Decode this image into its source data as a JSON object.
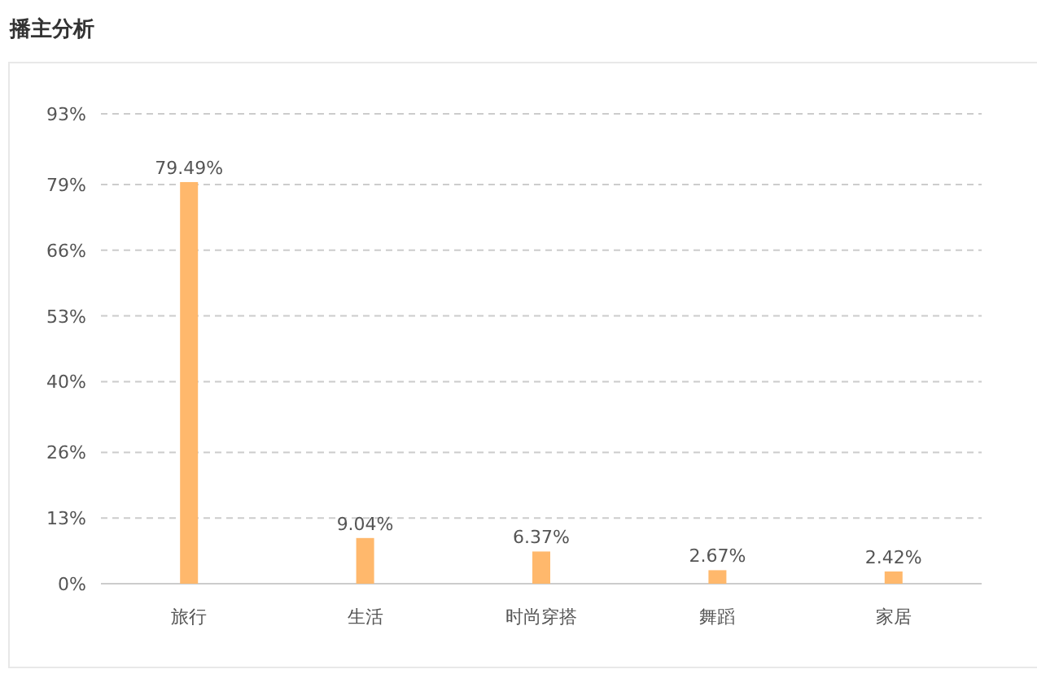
{
  "chart_data": {
    "type": "bar",
    "title": "播主分析",
    "categories": [
      "旅行",
      "生活",
      "时尚穿搭",
      "舞蹈",
      "家居"
    ],
    "values": [
      79.49,
      9.04,
      6.37,
      2.67,
      2.42
    ],
    "value_labels": [
      "79.49%",
      "9.04%",
      "6.37%",
      "2.67%",
      "2.42%"
    ],
    "color": "#ffb86c",
    "ylim": [
      0,
      93
    ],
    "yticks": [
      {
        "value": 0,
        "label": "0%"
      },
      {
        "value": 13,
        "label": "13%"
      },
      {
        "value": 26,
        "label": "26%"
      },
      {
        "value": 40,
        "label": "40%"
      },
      {
        "value": 53,
        "label": "53%"
      },
      {
        "value": 66,
        "label": "66%"
      },
      {
        "value": 79,
        "label": "79%"
      },
      {
        "value": 93,
        "label": "93%"
      }
    ],
    "grid": "y"
  }
}
